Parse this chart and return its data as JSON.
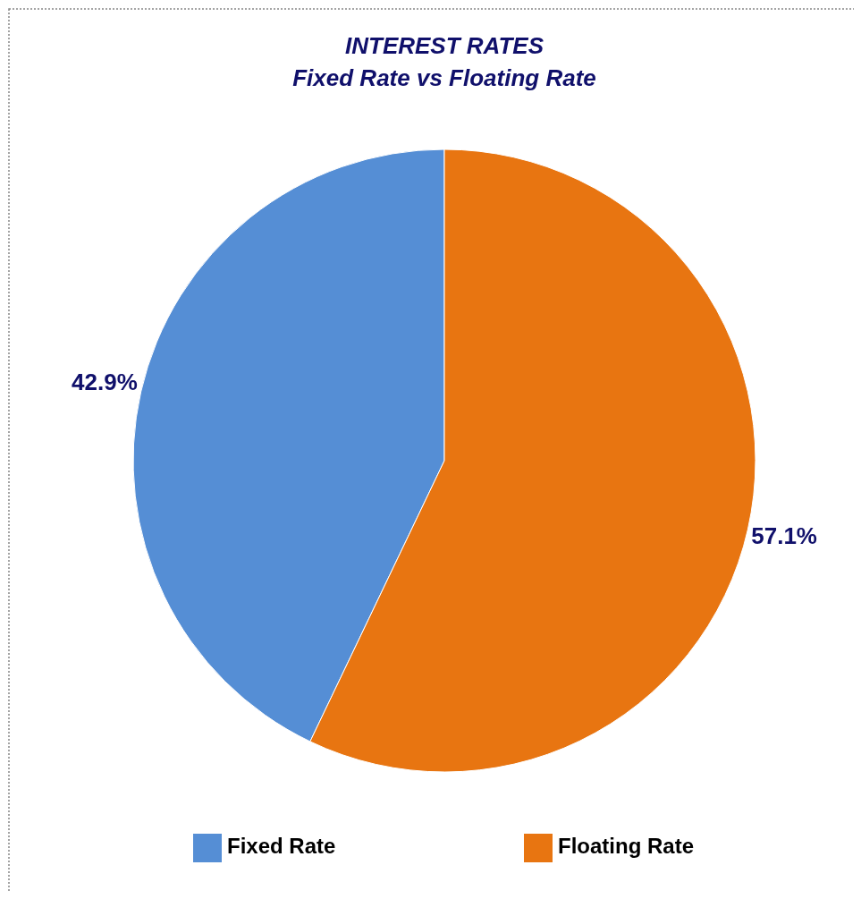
{
  "chart_data": {
    "type": "pie",
    "title": "INTEREST RATES",
    "subtitle": "Fixed Rate vs Floating Rate",
    "categories": [
      "Fixed Rate",
      "Floating Rate"
    ],
    "values": [
      42.9,
      57.1
    ],
    "colors": [
      "#558ed5",
      "#e87511"
    ],
    "value_labels": [
      "42.9%",
      "57.1%"
    ],
    "legend": "bottom"
  }
}
